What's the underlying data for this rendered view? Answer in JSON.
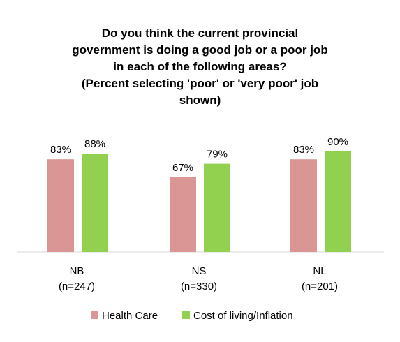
{
  "chart_data": {
    "type": "bar",
    "title_lines": [
      "Do you think the current provincial",
      "government is doing a good job or a poor job",
      "in each of the following areas?",
      "(Percent selecting 'poor' or 'very poor' job",
      "shown)"
    ],
    "categories": [
      {
        "name": "NB",
        "n": "(n=247)"
      },
      {
        "name": "NS",
        "n": "(n=330)"
      },
      {
        "name": "NL",
        "n": "(n=201)"
      }
    ],
    "series": [
      {
        "name": "Health Care",
        "color": "#D99694",
        "values": [
          83,
          67,
          83
        ],
        "labels": [
          "83%",
          "67%",
          "83%"
        ]
      },
      {
        "name": "Cost of living/Inflation",
        "color": "#92D050",
        "values": [
          88,
          79,
          90
        ],
        "labels": [
          "88%",
          "79%",
          "90%"
        ]
      }
    ],
    "ylim": [
      0,
      100
    ],
    "grid": false,
    "legend_position": "bottom"
  }
}
